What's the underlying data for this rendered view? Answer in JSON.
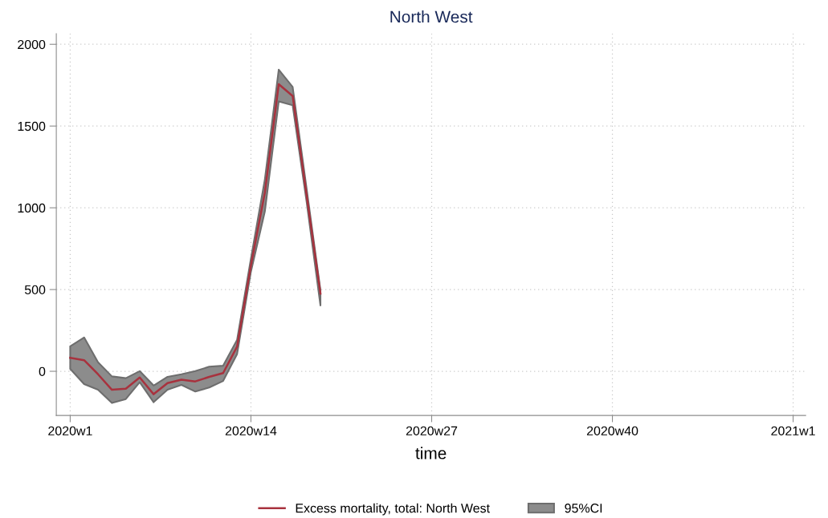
{
  "chart_data": {
    "type": "line",
    "title": "North West",
    "xlabel": "time",
    "categories": [
      "2020w1",
      null,
      null,
      null,
      null,
      null,
      null,
      null,
      null,
      null,
      null,
      null,
      null,
      "2020w14",
      null,
      null,
      null,
      null,
      null,
      null,
      null,
      null,
      null,
      null,
      null,
      null,
      "2020w27",
      null,
      null,
      null,
      null,
      null,
      null,
      null,
      null,
      null,
      null,
      null,
      null,
      "2020w40",
      null,
      null,
      null,
      null,
      null,
      null,
      null,
      null,
      null,
      null,
      null,
      null,
      "2021w1"
    ],
    "series": [
      {
        "name": "Excess mortality, total: North West",
        "color": "#a8323e",
        "values": [
          83,
          68,
          -18,
          -113,
          -106,
          -38,
          -140,
          -72,
          -51,
          -62,
          -34,
          -11,
          150,
          648,
          1092,
          1756,
          1684,
          1080,
          475,
          null,
          null,
          null,
          null,
          null,
          null,
          null,
          null,
          null,
          null,
          null,
          null,
          null,
          null,
          null,
          null,
          null,
          null,
          null,
          null,
          null,
          null,
          null,
          null,
          null,
          null,
          null,
          null,
          null,
          null,
          null,
          null,
          null,
          null
        ]
      },
      {
        "name": "95%CI",
        "type": "area",
        "color": "#8c8c8c",
        "lower": [
          15,
          -78,
          -113,
          -194,
          -170,
          -67,
          -189,
          -113,
          -83,
          -124,
          -99,
          -59,
          104,
          610,
          977,
          1651,
          1627,
          1040,
          403,
          null,
          null,
          null,
          null,
          null,
          null,
          null,
          null,
          null,
          null,
          null,
          null,
          null,
          null,
          null,
          null,
          null,
          null,
          null,
          null,
          null,
          null,
          null,
          null,
          null,
          null,
          null,
          null,
          null,
          null,
          null,
          null,
          null,
          null
        ],
        "upper": [
          153,
          207,
          55,
          -31,
          -42,
          1,
          -87,
          -34,
          -18,
          1,
          28,
          34,
          191,
          690,
          1173,
          1845,
          1739,
          1120,
          496,
          null,
          null,
          null,
          null,
          null,
          null,
          null,
          null,
          null,
          null,
          null,
          null,
          null,
          null,
          null,
          null,
          null,
          null,
          null,
          null,
          null,
          null,
          null,
          null,
          null,
          null,
          null,
          null,
          null,
          null,
          null,
          null,
          null,
          null
        ],
        "values": [
          null,
          null,
          null,
          null,
          null,
          null,
          null,
          null,
          null,
          null,
          null,
          null,
          null,
          null,
          null,
          null,
          null,
          null,
          null,
          null,
          null,
          null,
          null,
          null,
          null,
          null,
          null,
          null,
          null,
          null,
          null,
          null,
          null,
          null,
          null,
          null,
          null,
          null,
          null,
          null,
          null,
          null,
          null,
          null,
          null,
          null,
          null,
          null,
          null,
          null,
          null,
          null,
          null
        ]
      }
    ],
    "ylim": [
      -270,
      2065
    ],
    "yticks": [
      0,
      500,
      1000,
      1500,
      2000
    ],
    "grid": true,
    "legend": "bottom",
    "line_style": "solid",
    "marker": "none"
  }
}
